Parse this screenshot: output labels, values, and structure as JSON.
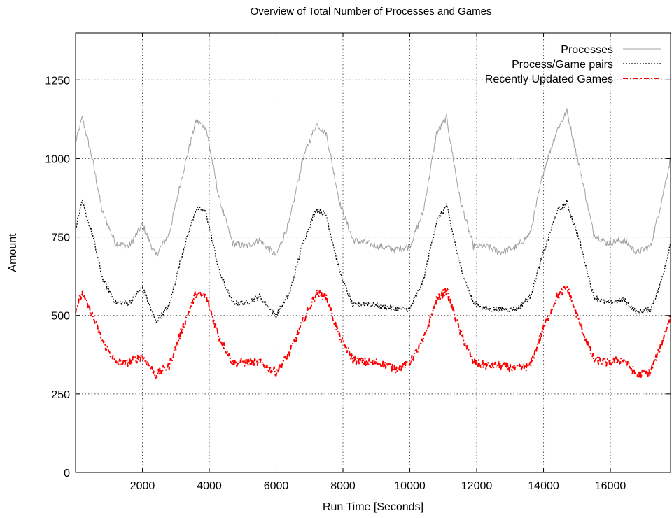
{
  "chart_data": {
    "type": "line",
    "title": "Overview of Total Number of Processes and Games",
    "xlabel": "Run Time [Seconds]",
    "ylabel": "Amount",
    "xlim": [
      0,
      17800
    ],
    "ylim": [
      0,
      1400
    ],
    "xticks": [
      2000,
      4000,
      6000,
      8000,
      10000,
      12000,
      14000,
      16000
    ],
    "yticks": [
      0,
      250,
      500,
      750,
      1000,
      1250
    ],
    "grid": true,
    "legend_position": "top-right",
    "series": [
      {
        "name": "Processes",
        "color": "#a0a0a0",
        "style": "solid",
        "x": [
          0,
          200,
          500,
          800,
          1200,
          1600,
          2000,
          2400,
          2800,
          3200,
          3600,
          3900,
          4300,
          4700,
          5100,
          5500,
          6000,
          6400,
          6800,
          7200,
          7500,
          7900,
          8300,
          8700,
          9100,
          9600,
          10000,
          10400,
          10800,
          11100,
          11500,
          11900,
          12300,
          12700,
          13200,
          13600,
          14000,
          14400,
          14700,
          15100,
          15500,
          15900,
          16400,
          16800,
          17200,
          17500,
          17800
        ],
        "y": [
          1050,
          1130,
          1000,
          830,
          730,
          720,
          790,
          690,
          760,
          950,
          1120,
          1100,
          870,
          730,
          720,
          740,
          690,
          800,
          1000,
          1110,
          1080,
          860,
          740,
          730,
          720,
          710,
          720,
          830,
          1080,
          1130,
          870,
          720,
          720,
          700,
          720,
          760,
          960,
          1090,
          1150,
          960,
          760,
          730,
          740,
          700,
          720,
          850,
          1000
        ]
      },
      {
        "name": "Process/Game pairs",
        "color": "#000000",
        "style": "dotted",
        "x": [
          0,
          200,
          500,
          800,
          1200,
          1600,
          2000,
          2400,
          2800,
          3200,
          3600,
          3900,
          4300,
          4700,
          5100,
          5500,
          6000,
          6400,
          6800,
          7200,
          7500,
          7900,
          8300,
          8700,
          9100,
          9600,
          10000,
          10400,
          10800,
          11100,
          11500,
          11900,
          12300,
          12700,
          13200,
          13600,
          14000,
          14400,
          14700,
          15100,
          15500,
          15900,
          16400,
          16800,
          17200,
          17500,
          17800
        ],
        "y": [
          780,
          860,
          760,
          620,
          540,
          540,
          590,
          480,
          530,
          700,
          840,
          830,
          640,
          540,
          540,
          560,
          500,
          570,
          730,
          840,
          820,
          640,
          530,
          540,
          530,
          520,
          520,
          610,
          800,
          850,
          660,
          540,
          520,
          520,
          520,
          560,
          700,
          830,
          860,
          730,
          560,
          540,
          550,
          510,
          520,
          600,
          730
        ]
      },
      {
        "name": "Recently Updated Games",
        "color": "#ff0000",
        "style": "dash-dot",
        "x": [
          0,
          200,
          500,
          800,
          1200,
          1600,
          2000,
          2400,
          2800,
          3200,
          3600,
          3900,
          4300,
          4700,
          5100,
          5500,
          6000,
          6400,
          6800,
          7200,
          7500,
          7900,
          8300,
          8700,
          9100,
          9600,
          10000,
          10400,
          10800,
          11100,
          11500,
          11900,
          12300,
          12700,
          13200,
          13600,
          14000,
          14400,
          14700,
          15100,
          15500,
          15900,
          16400,
          16800,
          17200,
          17500,
          17800
        ],
        "y": [
          520,
          570,
          500,
          420,
          350,
          350,
          370,
          310,
          340,
          460,
          570,
          560,
          430,
          350,
          350,
          350,
          320,
          380,
          480,
          570,
          560,
          430,
          360,
          350,
          350,
          330,
          350,
          420,
          550,
          580,
          450,
          350,
          340,
          340,
          330,
          340,
          460,
          560,
          590,
          470,
          360,
          350,
          360,
          310,
          320,
          400,
          500
        ]
      }
    ]
  }
}
